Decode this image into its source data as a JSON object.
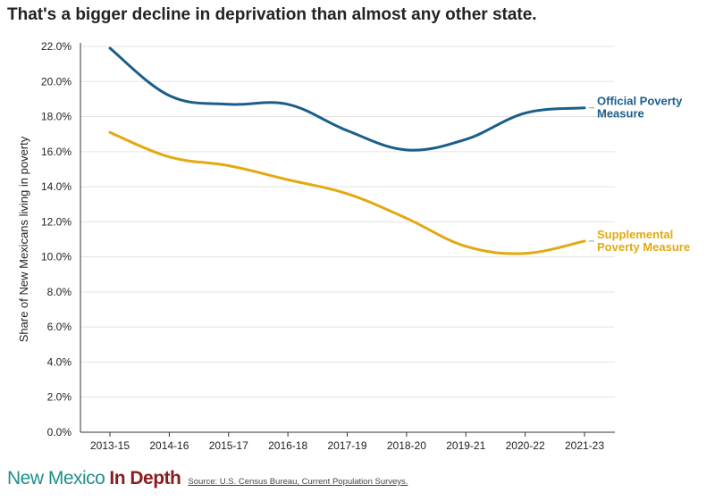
{
  "header": {
    "title": "That's a bigger decline in deprivation than almost any other state."
  },
  "footer": {
    "logo_part1": "New Mexico",
    "logo_part2": "In Depth",
    "source": "Source: U.S. Census Bureau, Current Population Surveys."
  },
  "colors": {
    "official": "#1b5e8a",
    "supplemental": "#e3a90f",
    "grid": "#e3e3e3",
    "axis": "#333333"
  },
  "chart_data": {
    "type": "line",
    "title": "That's a bigger decline in deprivation than almost any other state.",
    "xlabel": "",
    "ylabel": "Share of New Mexicans living in poverty",
    "ylim": [
      0,
      22
    ],
    "yticks": [
      0,
      2,
      4,
      6,
      8,
      10,
      12,
      14,
      16,
      18,
      20,
      22
    ],
    "ytick_labels": [
      "0.0%",
      "2.0%",
      "4.0%",
      "6.0%",
      "8.0%",
      "10.0%",
      "12.0%",
      "14.0%",
      "16.0%",
      "18.0%",
      "20.0%",
      "22.0%"
    ],
    "categories": [
      "2013-15",
      "2014-16",
      "2015-17",
      "2016-18",
      "2017-19",
      "2018-20",
      "2019-21",
      "2020-22",
      "2021-23"
    ],
    "grid": true,
    "series": [
      {
        "name": "Official Poverty Measure",
        "label_lines": [
          "Official Poverty",
          "Measure"
        ],
        "color": "#1b5e8a",
        "values": [
          21.9,
          19.2,
          18.7,
          18.7,
          17.2,
          16.1,
          16.7,
          18.2,
          18.5
        ]
      },
      {
        "name": "Supplemental Poverty Measure",
        "label_lines": [
          "Supplemental",
          "Poverty Measure"
        ],
        "color": "#e3a90f",
        "values": [
          17.1,
          15.7,
          15.2,
          14.4,
          13.6,
          12.2,
          10.6,
          10.2,
          10.9
        ]
      }
    ]
  }
}
